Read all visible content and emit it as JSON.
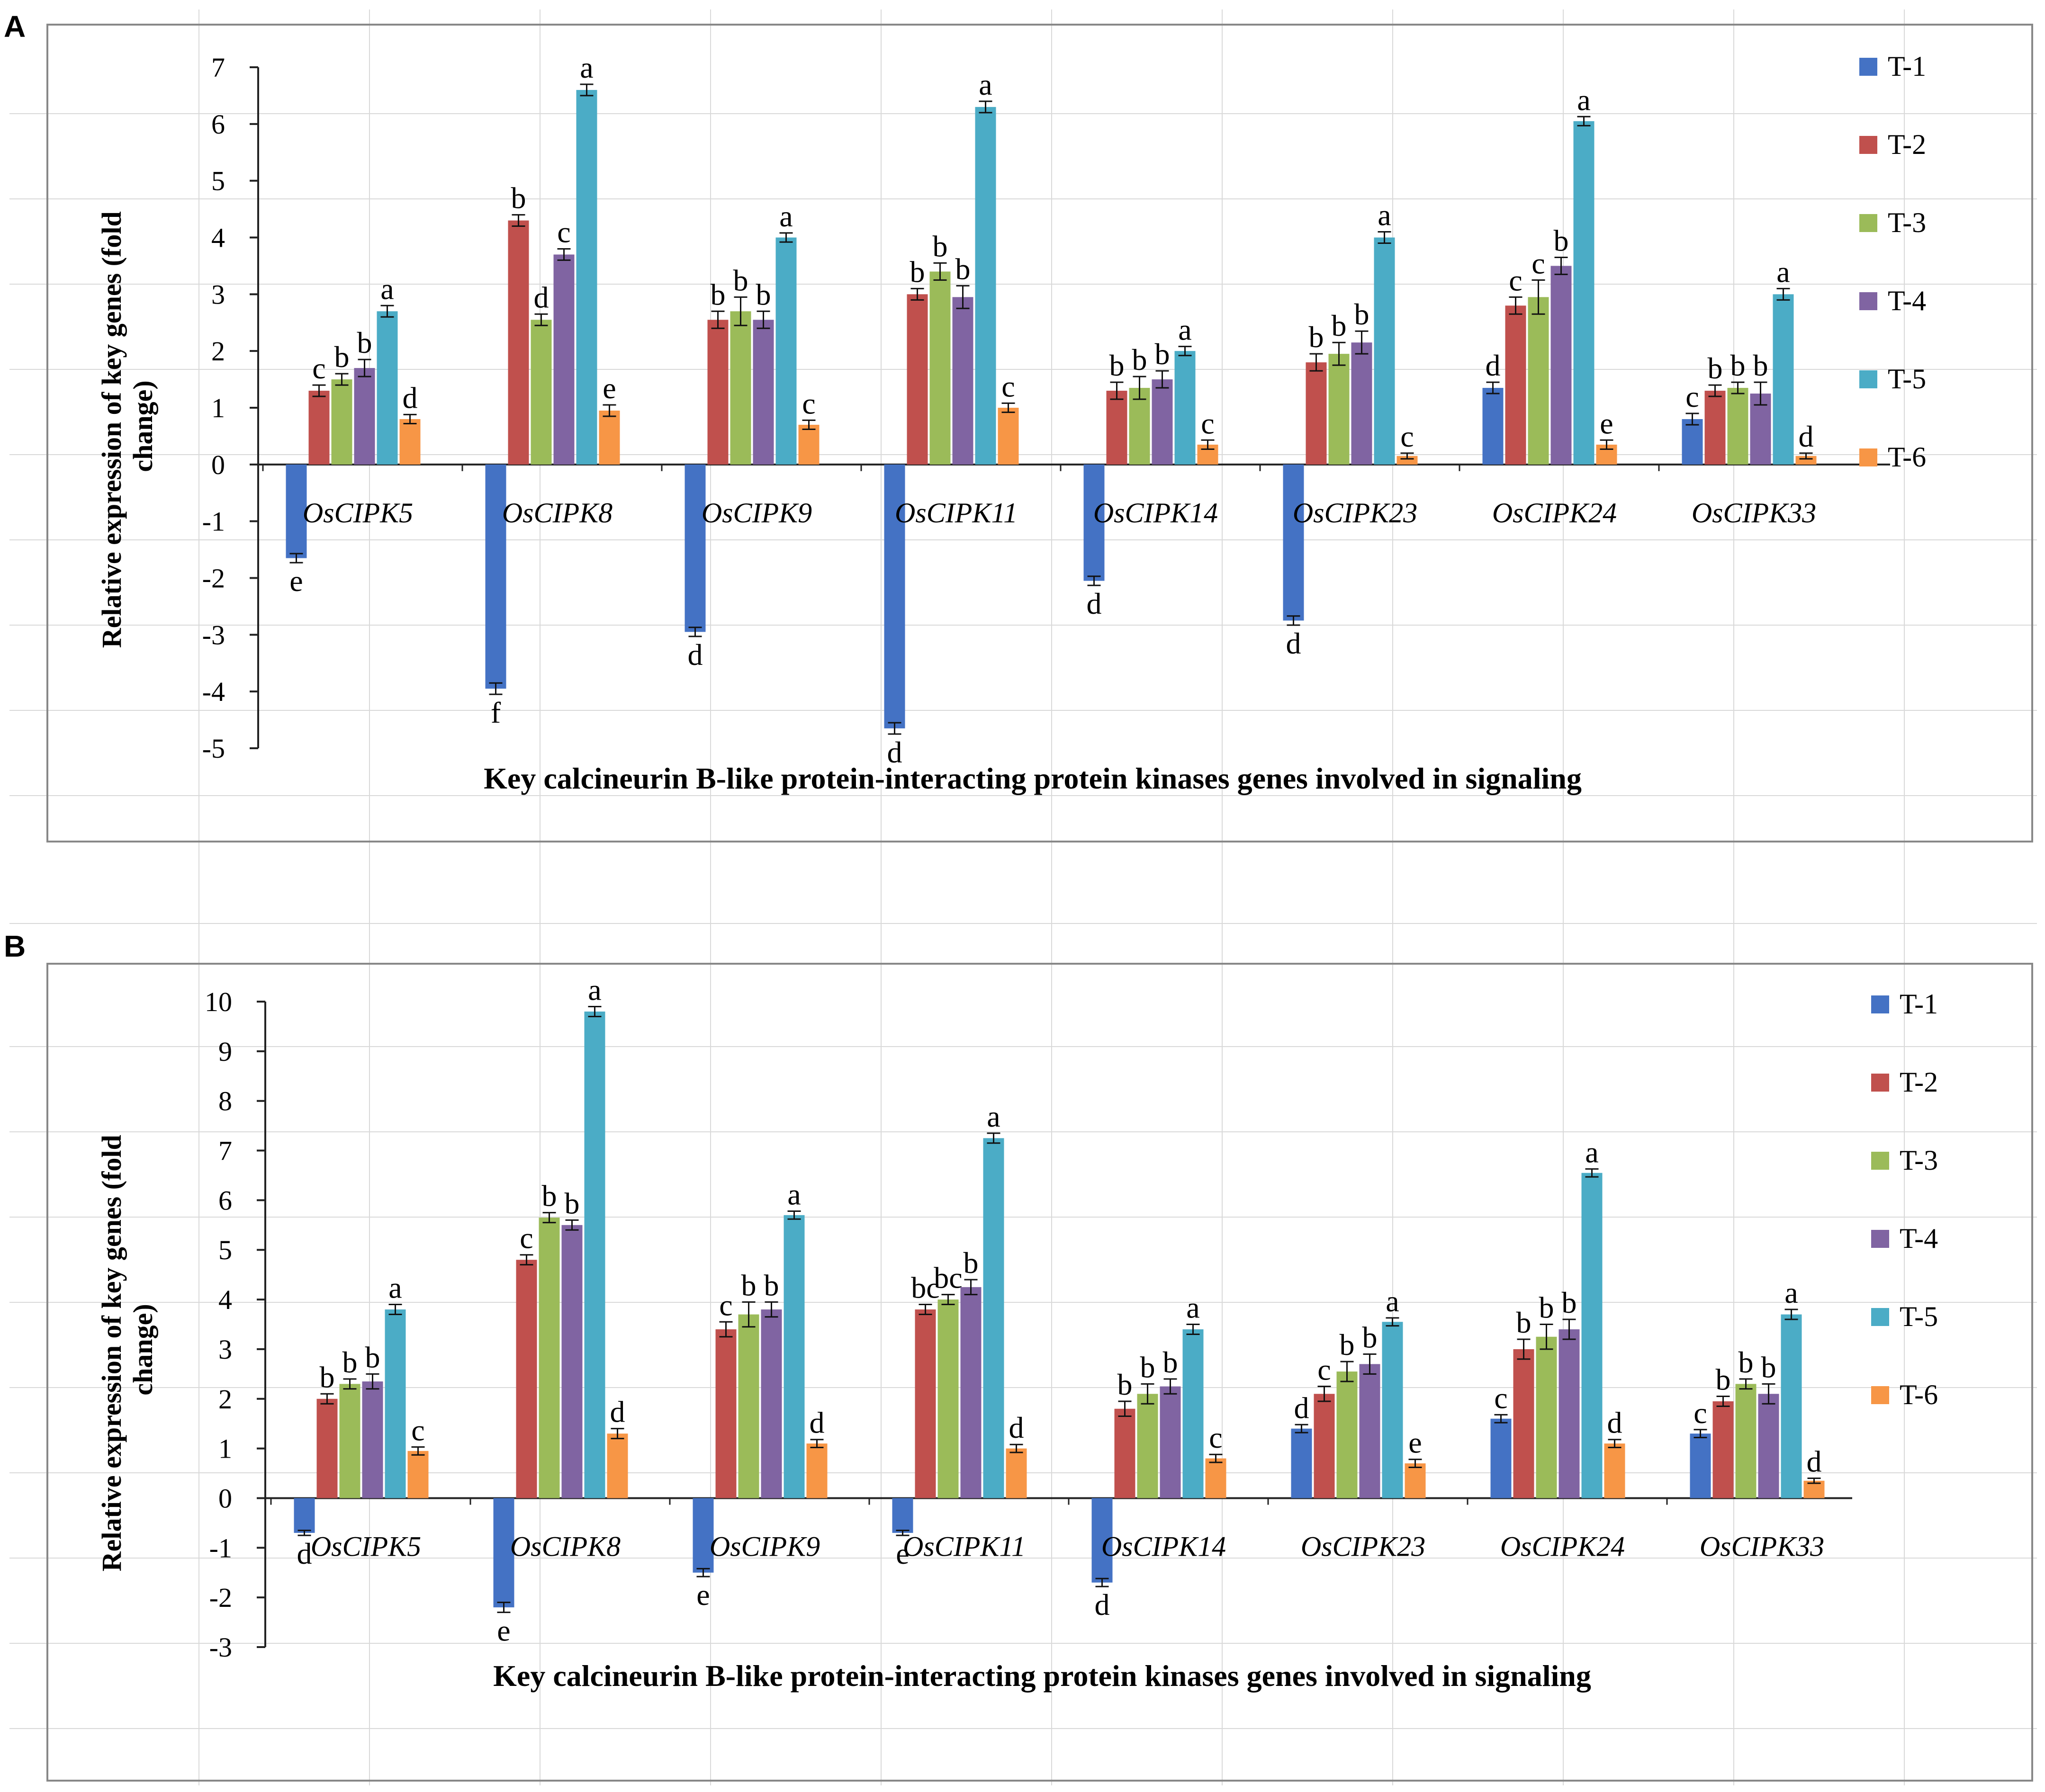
{
  "figure": {
    "panel_labels": [
      "A",
      "B"
    ]
  },
  "colors": {
    "T-1": "#4472C4",
    "T-2": "#C0504D",
    "T-3": "#9BBB59",
    "T-4": "#8064A2",
    "T-5": "#4BACC6",
    "T-6": "#F79646",
    "axis": "#222222",
    "frame": "#888888",
    "grid": "#d9d9d9"
  },
  "chart_data": [
    {
      "panel": "A",
      "type": "bar",
      "title": "",
      "xlabel": "Key calcineurin  B-like protein-interacting  protein kinases genes involved in signaling",
      "ylabel": "Relative expression of key genes (fold change)",
      "ylabel_lines": [
        "Relative expression of key genes (fold",
        "change)"
      ],
      "ylim": [
        -5,
        7
      ],
      "yticks": [
        -5,
        -4,
        -3,
        -2,
        -1,
        0,
        1,
        2,
        3,
        4,
        5,
        6,
        7
      ],
      "legend": {
        "position": "right",
        "entries": [
          "T-1",
          "T-2",
          "T-3",
          "T-4",
          "T-5",
          "T-6"
        ]
      },
      "categories": [
        "OsCIPK5",
        "OsCIPK8",
        "OsCIPK9",
        "OsCIPK11",
        "OsCIPK14",
        "OsCIPK23",
        "OsCIPK24",
        "OsCIPK33"
      ],
      "series": [
        {
          "name": "T-1",
          "values": [
            -1.65,
            -3.95,
            -2.95,
            -4.65,
            -2.05,
            -2.75,
            1.35,
            0.8
          ],
          "errors": [
            0.08,
            0.1,
            0.08,
            0.1,
            0.08,
            0.08,
            0.1,
            0.1
          ],
          "letters": [
            "e",
            "f",
            "d",
            "d",
            "d",
            "d",
            "d",
            "c"
          ]
        },
        {
          "name": "T-2",
          "values": [
            1.3,
            4.3,
            2.55,
            3.0,
            1.3,
            1.8,
            2.8,
            1.3
          ],
          "errors": [
            0.1,
            0.1,
            0.15,
            0.1,
            0.15,
            0.15,
            0.15,
            0.1
          ],
          "letters": [
            "c",
            "b",
            "b",
            "b",
            "b",
            "b",
            "c",
            "b"
          ]
        },
        {
          "name": "T-3",
          "values": [
            1.5,
            2.55,
            2.7,
            3.4,
            1.35,
            1.95,
            2.95,
            1.35
          ],
          "errors": [
            0.1,
            0.1,
            0.25,
            0.15,
            0.2,
            0.2,
            0.3,
            0.1
          ],
          "letters": [
            "b",
            "d",
            "b",
            "b",
            "b",
            "b",
            "c",
            "b"
          ]
        },
        {
          "name": "T-4",
          "values": [
            1.7,
            3.7,
            2.55,
            2.95,
            1.5,
            2.15,
            3.5,
            1.25
          ],
          "errors": [
            0.15,
            0.1,
            0.15,
            0.2,
            0.15,
            0.2,
            0.15,
            0.2
          ],
          "letters": [
            "b",
            "c",
            "b",
            "b",
            "b",
            "b",
            "b",
            "b"
          ]
        },
        {
          "name": "T-5",
          "values": [
            2.7,
            6.6,
            4.0,
            6.3,
            2.0,
            4.0,
            6.05,
            3.0
          ],
          "errors": [
            0.1,
            0.1,
            0.08,
            0.1,
            0.08,
            0.1,
            0.08,
            0.1
          ],
          "letters": [
            "a",
            "a",
            "a",
            "a",
            "a",
            "a",
            "a",
            "a"
          ]
        },
        {
          "name": "T-6",
          "values": [
            0.8,
            0.95,
            0.7,
            1.0,
            0.35,
            0.15,
            0.35,
            0.15
          ],
          "errors": [
            0.08,
            0.1,
            0.08,
            0.08,
            0.08,
            0.05,
            0.08,
            0.05
          ],
          "letters": [
            "d",
            "e",
            "c",
            "c",
            "c",
            "c",
            "e",
            "d"
          ]
        }
      ]
    },
    {
      "panel": "B",
      "type": "bar",
      "title": "",
      "xlabel": "Key calcineurin  B-like protein-interacting  protein kinases genes involved in signaling",
      "ylabel": "Relative expression of key genes (fold change)",
      "ylabel_lines": [
        "Relative expression of key genes (fold",
        "change)"
      ],
      "ylim": [
        -3,
        10
      ],
      "yticks": [
        -3,
        -2,
        -1,
        0,
        1,
        2,
        3,
        4,
        5,
        6,
        7,
        8,
        9,
        10
      ],
      "legend": {
        "position": "right",
        "entries": [
          "T-1",
          "T-2",
          "T-3",
          "T-4",
          "T-5",
          "T-6"
        ]
      },
      "categories": [
        "OsCIPK5",
        "OsCIPK8",
        "OsCIPK9",
        "OsCIPK11",
        "OsCIPK14",
        "OsCIPK23",
        "OsCIPK24",
        "OsCIPK33"
      ],
      "series": [
        {
          "name": "T-1",
          "values": [
            -0.7,
            -2.2,
            -1.5,
            -0.7,
            -1.7,
            1.4,
            1.6,
            1.3
          ],
          "errors": [
            0.05,
            0.1,
            0.08,
            0.05,
            0.08,
            0.08,
            0.08,
            0.08
          ],
          "letters": [
            "d",
            "e",
            "e",
            "e",
            "d",
            "d",
            "c",
            "c"
          ]
        },
        {
          "name": "T-2",
          "values": [
            2.0,
            4.8,
            3.4,
            3.8,
            1.8,
            2.1,
            3.0,
            1.95
          ],
          "errors": [
            0.1,
            0.1,
            0.15,
            0.1,
            0.15,
            0.15,
            0.2,
            0.1
          ],
          "letters": [
            "b",
            "c",
            "c",
            "bc",
            "b",
            "c",
            "b",
            "b"
          ]
        },
        {
          "name": "T-3",
          "values": [
            2.3,
            5.65,
            3.7,
            4.0,
            2.1,
            2.55,
            3.25,
            2.3
          ],
          "errors": [
            0.1,
            0.1,
            0.25,
            0.1,
            0.2,
            0.2,
            0.25,
            0.1
          ],
          "letters": [
            "b",
            "b",
            "b",
            "bc",
            "b",
            "b",
            "b",
            "b"
          ]
        },
        {
          "name": "T-4",
          "values": [
            2.35,
            5.5,
            3.8,
            4.25,
            2.25,
            2.7,
            3.4,
            2.1
          ],
          "errors": [
            0.15,
            0.1,
            0.15,
            0.15,
            0.15,
            0.2,
            0.2,
            0.2
          ],
          "letters": [
            "b",
            "b",
            "b",
            "b",
            "b",
            "b",
            "b",
            "b"
          ]
        },
        {
          "name": "T-5",
          "values": [
            3.8,
            9.8,
            5.7,
            7.25,
            3.4,
            3.55,
            6.55,
            3.7
          ],
          "errors": [
            0.1,
            0.1,
            0.08,
            0.1,
            0.1,
            0.08,
            0.08,
            0.1
          ],
          "letters": [
            "a",
            "a",
            "a",
            "a",
            "a",
            "a",
            "a",
            "a"
          ]
        },
        {
          "name": "T-6",
          "values": [
            0.95,
            1.3,
            1.1,
            1.0,
            0.8,
            0.7,
            1.1,
            0.35
          ],
          "errors": [
            0.08,
            0.1,
            0.08,
            0.08,
            0.08,
            0.08,
            0.08,
            0.05
          ],
          "letters": [
            "c",
            "d",
            "d",
            "d",
            "c",
            "e",
            "d",
            "d"
          ]
        }
      ]
    }
  ]
}
